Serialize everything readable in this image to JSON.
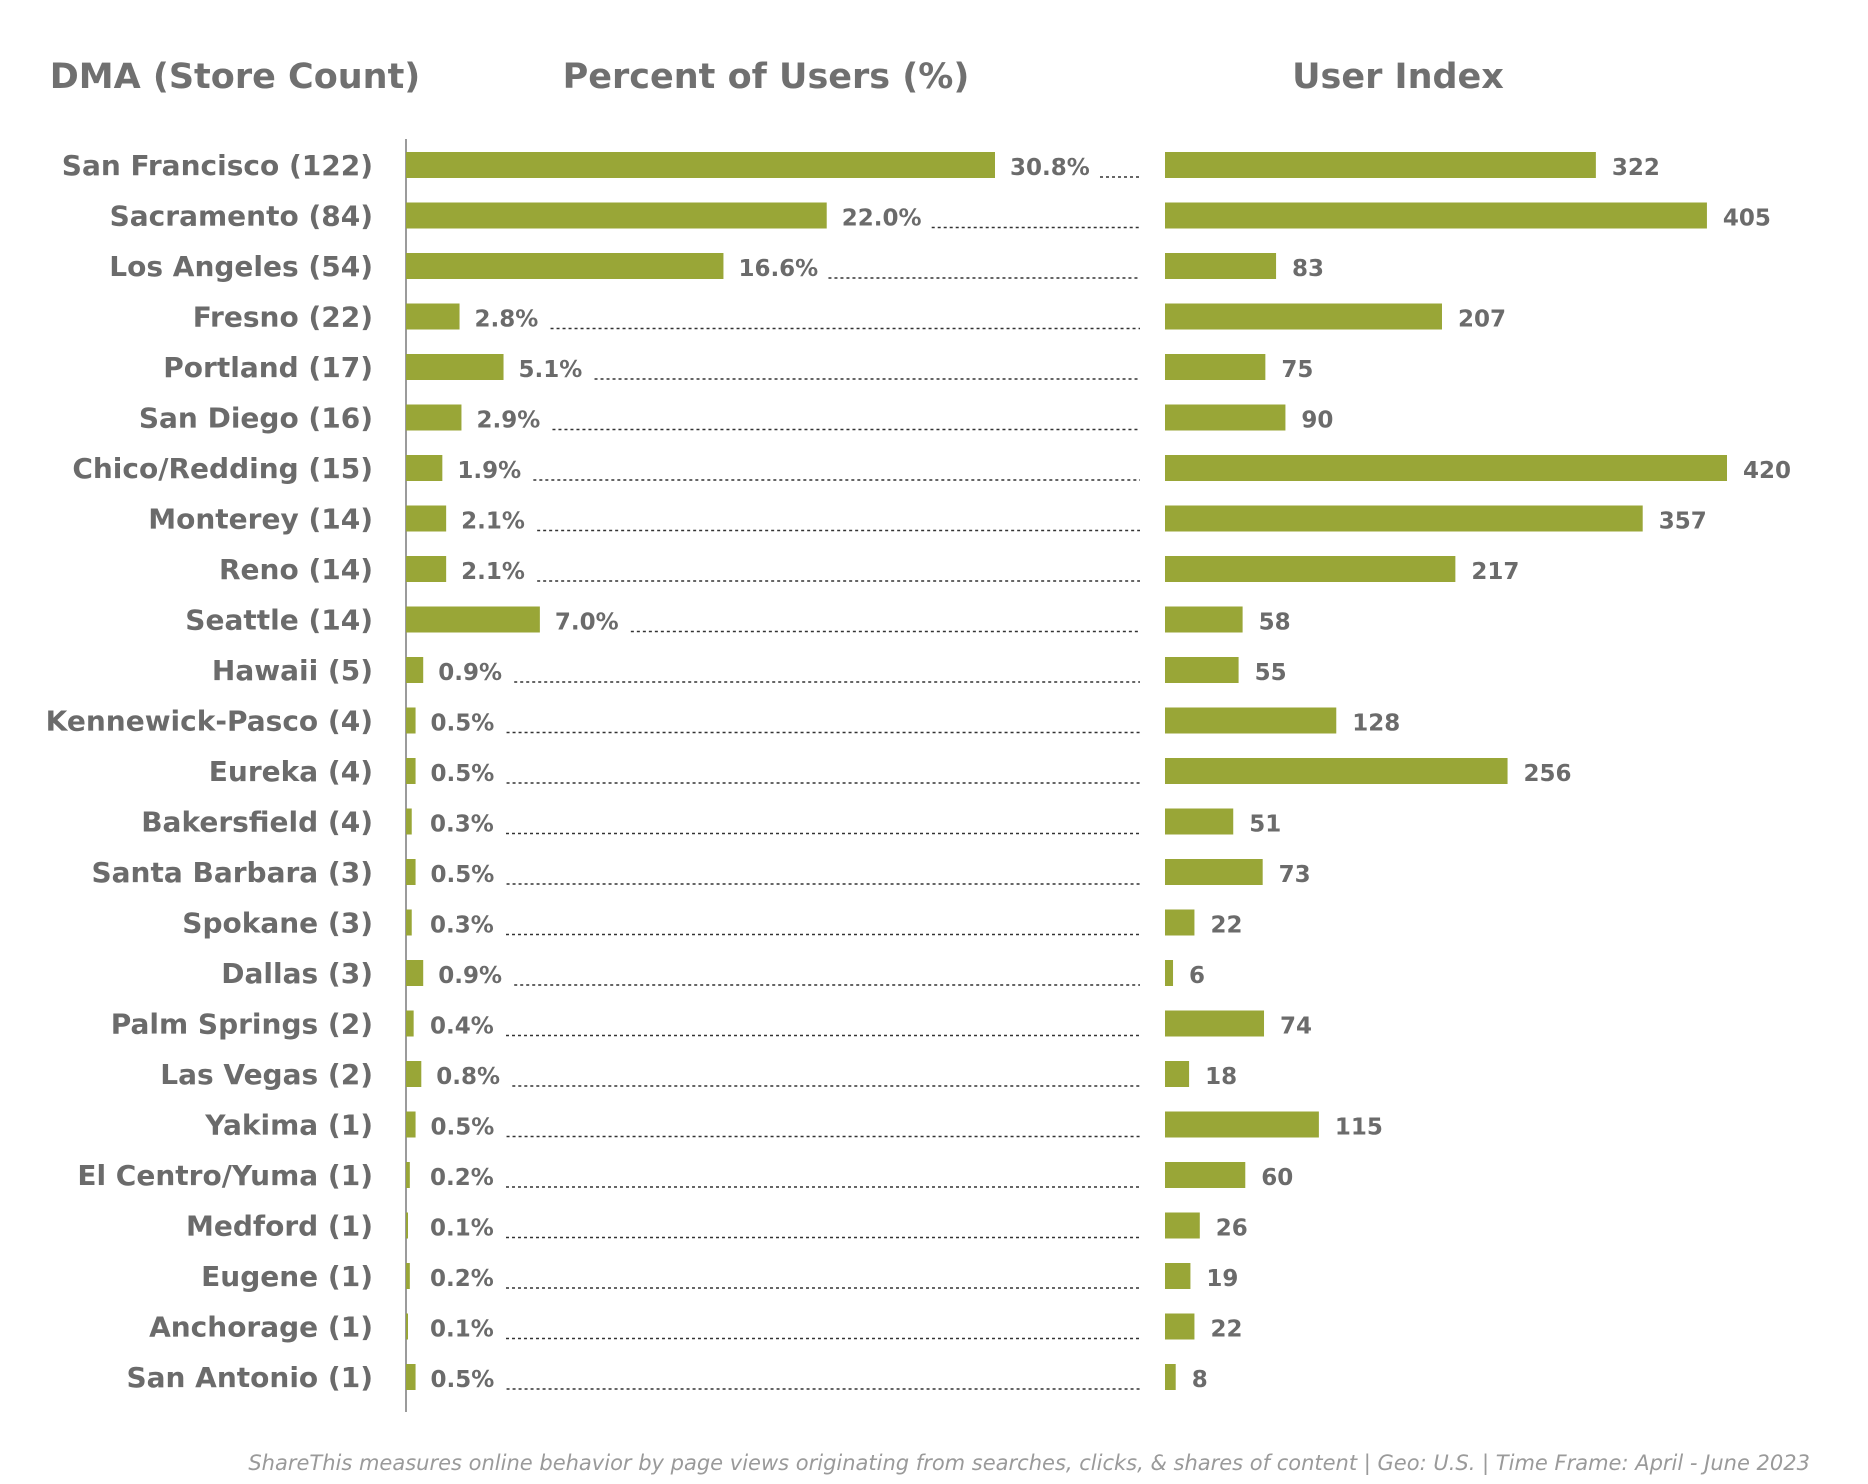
{
  "colors": {
    "bar": "#99a637",
    "text": "#6b6b6b",
    "axis": "#9b9b9b",
    "leader": "#333333"
  },
  "footer": "ShareThis measures online behavior by page views originating from searches, clicks, & shares of content | Geo: U.S. | Time Frame: April - June 2023",
  "chart_data": [
    {
      "type": "bar",
      "orientation": "horizontal",
      "title": "DMA (Store Count)",
      "categories": [
        "San Francisco (122)",
        "Sacramento (84)",
        "Los Angeles (54)",
        "Fresno (22)",
        "Portland (17)",
        "San Diego (16)",
        "Chico/Redding (15)",
        "Monterey (14)",
        "Reno (14)",
        "Seattle (14)",
        "Hawaii (5)",
        "Kennewick-Pasco (4)",
        "Eureka (4)",
        "Bakersfield (4)",
        "Santa Barbara (3)",
        "Spokane (3)",
        "Dallas (3)",
        "Palm Springs (2)",
        "Las Vegas (2)",
        "Yakima (1)",
        "El Centro/Yuma (1)",
        "Medford (1)",
        "Eugene (1)",
        "Anchorage (1)",
        "San Antonio (1)"
      ]
    },
    {
      "type": "bar",
      "orientation": "horizontal",
      "title": "Percent of Users (%)",
      "values": [
        30.8,
        22.0,
        16.6,
        2.8,
        5.1,
        2.9,
        1.9,
        2.1,
        2.1,
        7.0,
        0.9,
        0.5,
        0.5,
        0.3,
        0.5,
        0.3,
        0.9,
        0.4,
        0.8,
        0.5,
        0.2,
        0.1,
        0.2,
        0.1,
        0.5
      ],
      "labels": [
        "30.8%",
        "22.0%",
        "16.6%",
        "2.8%",
        "5.1%",
        "2.9%",
        "1.9%",
        "2.1%",
        "2.1%",
        "7.0%",
        "0.9%",
        "0.5%",
        "0.5%",
        "0.3%",
        "0.5%",
        "0.3%",
        "0.9%",
        "0.4%",
        "0.8%",
        "0.5%",
        "0.2%",
        "0.1%",
        "0.2%",
        "0.1%",
        "0.5%"
      ]
    },
    {
      "type": "bar",
      "orientation": "horizontal",
      "title": "User Index",
      "values": [
        322,
        405,
        83,
        207,
        75,
        90,
        420,
        357,
        217,
        58,
        55,
        128,
        256,
        51,
        73,
        22,
        6,
        74,
        18,
        115,
        60,
        26,
        19,
        22,
        8
      ],
      "labels": [
        "322",
        "405",
        "83",
        "207",
        "75",
        "90",
        "420",
        "357",
        "217",
        "58",
        "55",
        "128",
        "256",
        "51",
        "73",
        "22",
        "6",
        "74",
        "18",
        "115",
        "60",
        "26",
        "19",
        "22",
        "8"
      ]
    }
  ]
}
